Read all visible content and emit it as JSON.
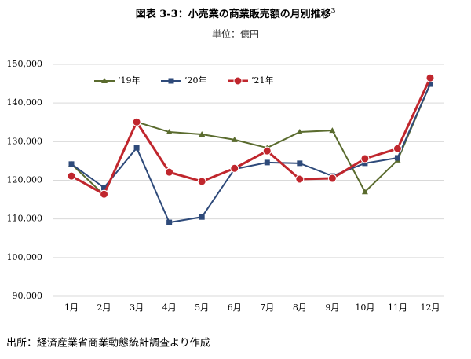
{
  "chart_data": {
    "type": "line",
    "title": "図表 3-3：小売業の商業販売額の月別推移",
    "title_note": "3",
    "subtitle": "単位：億円",
    "source": "出所：経済産業省商業動態統計調査より作成",
    "categories": [
      "1月",
      "2月",
      "3月",
      "4月",
      "5月",
      "6月",
      "7月",
      "8月",
      "9月",
      "10月",
      "11月",
      "12月"
    ],
    "series": [
      {
        "name": "’19年",
        "color": "#5a6b2e",
        "marker": "triangle",
        "values": [
          124200,
          116200,
          135100,
          132500,
          131900,
          130500,
          128400,
          132500,
          132900,
          117000,
          125200,
          144900
        ]
      },
      {
        "name": "’20年",
        "color": "#2e4a7a",
        "marker": "square",
        "values": [
          124200,
          118100,
          128400,
          109100,
          110500,
          122900,
          124600,
          124400,
          121100,
          124400,
          125800,
          144900
        ]
      },
      {
        "name": "’21年",
        "color": "#c0262d",
        "marker": "circle",
        "values": [
          121100,
          116400,
          135100,
          122100,
          119700,
          123100,
          127600,
          120300,
          120500,
          125600,
          128200,
          146500
        ]
      }
    ],
    "ylim": [
      90000,
      150000
    ],
    "yticks": [
      {
        "value": 90000,
        "label": "90,000"
      },
      {
        "value": 100000,
        "label": "100,000"
      },
      {
        "value": 110000,
        "label": "110,000"
      },
      {
        "value": 120000,
        "label": "120,000"
      },
      {
        "value": 130000,
        "label": "130,000"
      },
      {
        "value": 140000,
        "label": "140,000"
      },
      {
        "value": 150000,
        "label": "150,000"
      }
    ],
    "grid": true,
    "legend": "top-left"
  }
}
